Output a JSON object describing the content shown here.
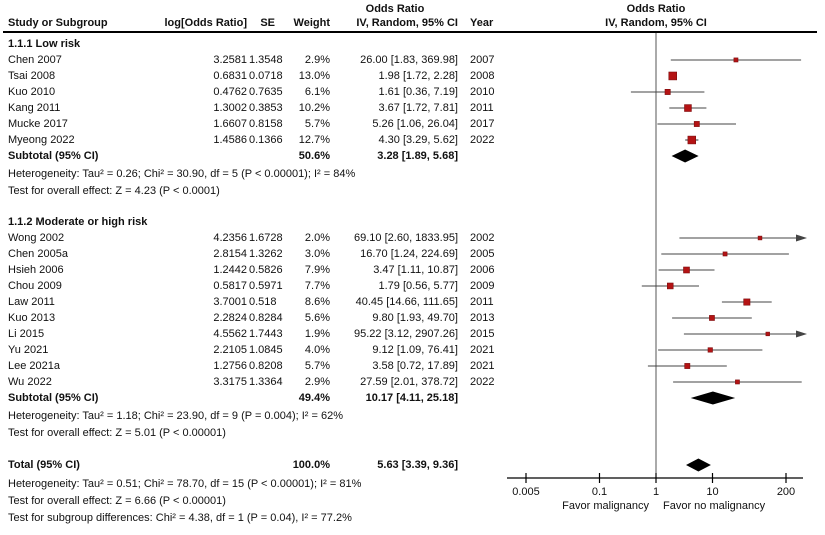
{
  "header": {
    "or_title_left": "Odds Ratio",
    "study": "Study or Subgroup",
    "logor": "log[Odds Ratio]",
    "se": "SE",
    "weight": "Weight",
    "ivci": "IV, Random, 95% CI",
    "year": "Year",
    "or_title_plot": "Odds Ratio",
    "ivci_plot": "IV, Random, 95% CI"
  },
  "colors": {
    "marker": "#b41314",
    "marker_border": "#7d0d0e",
    "ci_line": "#444444",
    "diamond": "#000000",
    "axis": "#000000",
    "center_line": "#555555"
  },
  "chart_data": {
    "type": "forest",
    "effect_measure": "Odds Ratio, IV, Random, 95% CI",
    "x_scale": "log",
    "axis": {
      "ticks": [
        0.005,
        0.1,
        1,
        10,
        200
      ],
      "tick_labels": [
        "0.005",
        "0.1",
        "1",
        "10",
        "200"
      ],
      "left_label": "Favor malignancy",
      "right_label": "Favor no malignancy"
    },
    "groups": [
      {
        "label": "1.1.1 Low risk",
        "studies": [
          {
            "study": "Chen 2007",
            "logor": "3.2581",
            "se": "1.3548",
            "weight": "2.9%",
            "weight_pct": 2.9,
            "or": 26.0,
            "ci_low": 1.83,
            "ci_high": 369.98,
            "ci_text": "26.00 [1.83, 369.98]",
            "year": "2007"
          },
          {
            "study": "Tsai 2008",
            "logor": "0.6831",
            "se": "0.0718",
            "weight": "13.0%",
            "weight_pct": 13.0,
            "or": 1.98,
            "ci_low": 1.72,
            "ci_high": 2.28,
            "ci_text": "1.98 [1.72, 2.28]",
            "year": "2008"
          },
          {
            "study": "Kuo 2010",
            "logor": "0.4762",
            "se": "0.7635",
            "weight": "6.1%",
            "weight_pct": 6.1,
            "or": 1.61,
            "ci_low": 0.36,
            "ci_high": 7.19,
            "ci_text": "1.61 [0.36, 7.19]",
            "year": "2010"
          },
          {
            "study": "Kang 2011",
            "logor": "1.3002",
            "se": "0.3853",
            "weight": "10.2%",
            "weight_pct": 10.2,
            "or": 3.67,
            "ci_low": 1.72,
            "ci_high": 7.81,
            "ci_text": "3.67 [1.72, 7.81]",
            "year": "2011"
          },
          {
            "study": "Mucke 2017",
            "logor": "1.6607",
            "se": "0.8158",
            "weight": "5.7%",
            "weight_pct": 5.7,
            "or": 5.26,
            "ci_low": 1.06,
            "ci_high": 26.04,
            "ci_text": "5.26 [1.06, 26.04]",
            "year": "2017"
          },
          {
            "study": "Myeong 2022",
            "logor": "1.4586",
            "se": "0.1366",
            "weight": "12.7%",
            "weight_pct": 12.7,
            "or": 4.3,
            "ci_low": 3.29,
            "ci_high": 5.62,
            "ci_text": "4.30 [3.29, 5.62]",
            "year": "2022"
          }
        ],
        "subtotal": {
          "label": "Subtotal (95% CI)",
          "weight": "50.6%",
          "or": 3.28,
          "ci_low": 1.89,
          "ci_high": 5.68,
          "ci_text": "3.28 [1.89, 5.68]"
        },
        "heterogeneity": "Heterogeneity: Tau² = 0.26; Chi² = 30.90, df = 5 (P < 0.00001); I² = 84%",
        "overall_effect": "Test for overall effect: Z = 4.23 (P < 0.0001)"
      },
      {
        "label": "1.1.2 Moderate or high risk",
        "studies": [
          {
            "study": "Wong 2002",
            "logor": "4.2356",
            "se": "1.6728",
            "weight": "2.0%",
            "weight_pct": 2.0,
            "or": 69.1,
            "ci_low": 2.6,
            "ci_high": 1833.95,
            "ci_text": "69.10 [2.60, 1833.95]",
            "year": "2002"
          },
          {
            "study": "Chen 2005a",
            "logor": "2.8154",
            "se": "1.3262",
            "weight": "3.0%",
            "weight_pct": 3.0,
            "or": 16.7,
            "ci_low": 1.24,
            "ci_high": 224.69,
            "ci_text": "16.70 [1.24, 224.69]",
            "year": "2005"
          },
          {
            "study": "Hsieh 2006",
            "logor": "1.2442",
            "se": "0.5826",
            "weight": "7.9%",
            "weight_pct": 7.9,
            "or": 3.47,
            "ci_low": 1.11,
            "ci_high": 10.87,
            "ci_text": "3.47 [1.11, 10.87]",
            "year": "2006"
          },
          {
            "study": "Chou 2009",
            "logor": "0.5817",
            "se": "0.5971",
            "weight": "7.7%",
            "weight_pct": 7.7,
            "or": 1.79,
            "ci_low": 0.56,
            "ci_high": 5.77,
            "ci_text": "1.79 [0.56, 5.77]",
            "year": "2009"
          },
          {
            "study": "Law 2011",
            "logor": "3.7001",
            "se": "0.518",
            "weight": "8.6%",
            "weight_pct": 8.6,
            "or": 40.45,
            "ci_low": 14.66,
            "ci_high": 111.65,
            "ci_text": "40.45 [14.66, 111.65]",
            "year": "2011"
          },
          {
            "study": "Kuo 2013",
            "logor": "2.2824",
            "se": "0.8284",
            "weight": "5.6%",
            "weight_pct": 5.6,
            "or": 9.8,
            "ci_low": 1.93,
            "ci_high": 49.7,
            "ci_text": "9.80 [1.93, 49.70]",
            "year": "2013"
          },
          {
            "study": "Li 2015",
            "logor": "4.5562",
            "se": "1.7443",
            "weight": "1.9%",
            "weight_pct": 1.9,
            "or": 95.22,
            "ci_low": 3.12,
            "ci_high": 2907.26,
            "ci_text": "95.22 [3.12, 2907.26]",
            "year": "2015"
          },
          {
            "study": "Yu 2021",
            "logor": "2.2105",
            "se": "1.0845",
            "weight": "4.0%",
            "weight_pct": 4.0,
            "or": 9.12,
            "ci_low": 1.09,
            "ci_high": 76.41,
            "ci_text": "9.12 [1.09, 76.41]",
            "year": "2021"
          },
          {
            "study": "Lee 2021a",
            "logor": "1.2756",
            "se": "0.8208",
            "weight": "5.7%",
            "weight_pct": 5.7,
            "or": 3.58,
            "ci_low": 0.72,
            "ci_high": 17.89,
            "ci_text": "3.58 [0.72, 17.89]",
            "year": "2021"
          },
          {
            "study": "Wu 2022",
            "logor": "3.3175",
            "se": "1.3364",
            "weight": "2.9%",
            "weight_pct": 2.9,
            "or": 27.59,
            "ci_low": 2.01,
            "ci_high": 378.72,
            "ci_text": "27.59 [2.01, 378.72]",
            "year": "2022"
          }
        ],
        "subtotal": {
          "label": "Subtotal (95% CI)",
          "weight": "49.4%",
          "or": 10.17,
          "ci_low": 4.11,
          "ci_high": 25.18,
          "ci_text": "10.17 [4.11, 25.18]"
        },
        "heterogeneity": "Heterogeneity: Tau² = 1.18; Chi² = 23.90, df = 9 (P = 0.004); I² = 62%",
        "overall_effect": "Test for overall effect: Z = 5.01 (P < 0.00001)"
      }
    ],
    "total": {
      "label": "Total (95% CI)",
      "weight": "100.0%",
      "or": 5.63,
      "ci_low": 3.39,
      "ci_high": 9.36,
      "ci_text": "5.63 [3.39, 9.36]"
    },
    "total_heterogeneity": "Heterogeneity: Tau² = 0.51; Chi² = 78.70, df = 15 (P < 0.00001); I² = 81%",
    "total_overall_effect": "Test for overall effect: Z = 6.66 (P < 0.00001)",
    "subgroup_differences": "Test for subgroup differences: Chi² = 4.38, df = 1 (P = 0.04), I² = 77.2%"
  }
}
